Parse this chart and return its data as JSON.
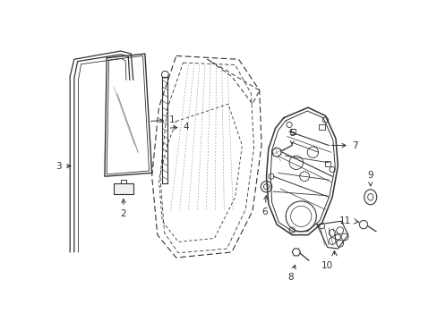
{
  "bg_color": "#ffffff",
  "line_color": "#333333",
  "figsize": [
    4.89,
    3.6
  ],
  "dpi": 100,
  "label_fontsize": 7.5
}
